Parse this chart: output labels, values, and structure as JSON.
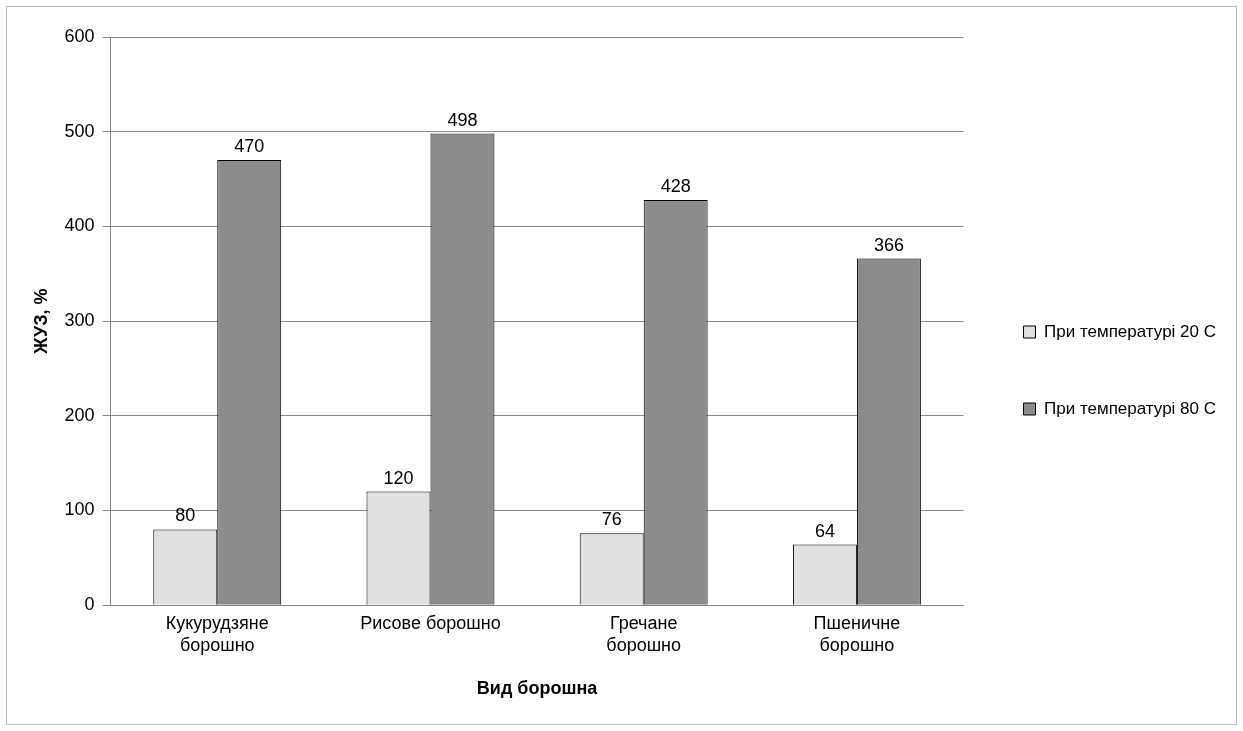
{
  "chart_data": {
    "type": "bar",
    "xlabel": "Вид борошна",
    "ylabel": "ЖУЗ, %",
    "categories": [
      "Кукурудзяне борошно",
      "Рисове борошно",
      "Гречане борошно",
      "Пшеничне борошно"
    ],
    "series": [
      {
        "name": "При температурі 20 С",
        "color": "#e0e0e0",
        "values": [
          80,
          120,
          76,
          64
        ]
      },
      {
        "name": "При температурі 80 С",
        "color": "#8c8c8c",
        "values": [
          470,
          498,
          428,
          366
        ]
      }
    ],
    "ylim": [
      0,
      600
    ],
    "yticks": [
      0,
      100,
      200,
      300,
      400,
      500,
      600
    ],
    "grid": "y",
    "legend": "right",
    "data_labels": true
  }
}
